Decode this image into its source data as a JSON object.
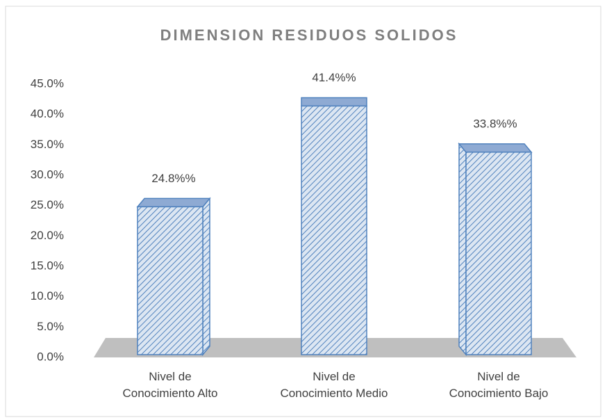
{
  "chart_data": {
    "type": "bar3d",
    "title": "DIMENSION RESIDUOS SOLIDOS",
    "categories": [
      "Nivel de Conocimiento Alto",
      "Nivel de Conocimiento Medio",
      "Nivel de Conocimiento Bajo"
    ],
    "values": [
      24.8,
      41.4,
      33.8
    ],
    "value_labels": [
      "24.8%%",
      "41.4%%",
      "33.8%%"
    ],
    "color": "#4f81bd",
    "ylim": [
      0,
      45
    ],
    "yticks": [
      {
        "value": 0,
        "label": "0.0%"
      },
      {
        "value": 5,
        "label": "5.0%"
      },
      {
        "value": 10,
        "label": "10.0%"
      },
      {
        "value": 15,
        "label": "15.0%"
      },
      {
        "value": 20,
        "label": "20.0%"
      },
      {
        "value": 25,
        "label": "25.0%"
      },
      {
        "value": 30,
        "label": "30.0%"
      },
      {
        "value": 35,
        "label": "35.0%"
      },
      {
        "value": 40,
        "label": "40.0%"
      },
      {
        "value": 45,
        "label": "45.0%"
      }
    ],
    "grid": false
  }
}
